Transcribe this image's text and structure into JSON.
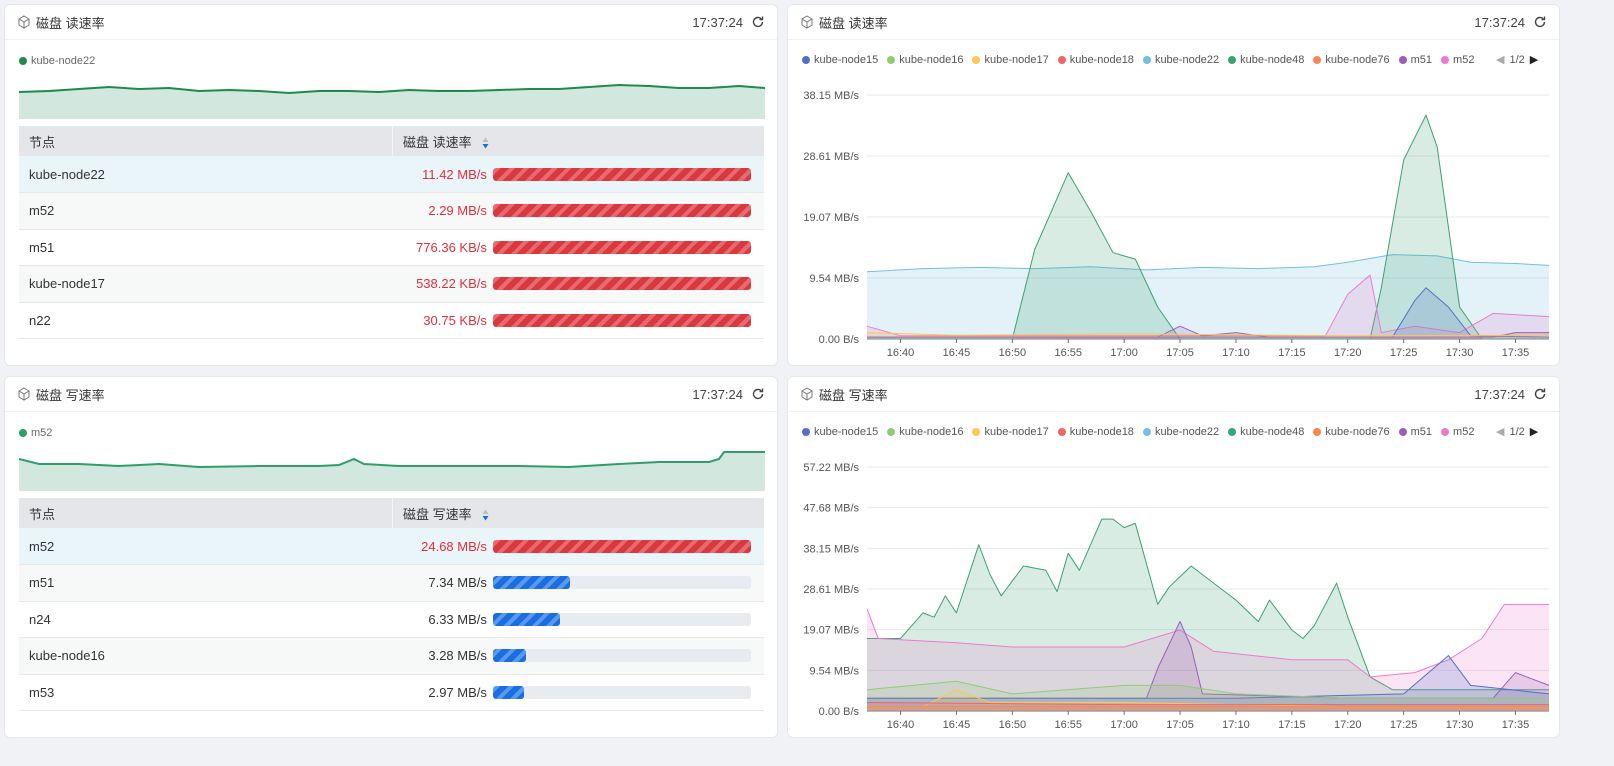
{
  "panels": [
    {
      "title": "磁盘 读速率",
      "time": "17:37:24",
      "legend": "kube-node22",
      "legend_color": "#1e8a4c",
      "table": {
        "headers": [
          "节点",
          "磁盘 读速率"
        ],
        "sort": "descending",
        "rows": [
          {
            "node": "kube-node22",
            "value": "11.42 MB/s",
            "fill": 1.0,
            "color": "red"
          },
          {
            "node": "m52",
            "value": "2.29 MB/s",
            "fill": 1.0,
            "color": "red"
          },
          {
            "node": "m51",
            "value": "776.36 KB/s",
            "fill": 1.0,
            "color": "red"
          },
          {
            "node": "kube-node17",
            "value": "538.22 KB/s",
            "fill": 1.0,
            "color": "red"
          },
          {
            "node": "n22",
            "value": "30.75 KB/s",
            "fill": 1.0,
            "color": "red"
          }
        ]
      }
    },
    {
      "title": "磁盘 写速率",
      "time": "17:37:24",
      "legend": "m52",
      "legend_color": "#2e9e6a",
      "table": {
        "headers": [
          "节点",
          "磁盘 写速率"
        ],
        "sort": "descending",
        "rows": [
          {
            "node": "m52",
            "value": "24.68 MB/s",
            "fill": 1.0,
            "color": "red"
          },
          {
            "node": "m51",
            "value": "7.34 MB/s",
            "fill": 0.3,
            "color": "blue"
          },
          {
            "node": "n24",
            "value": "6.33 MB/s",
            "fill": 0.26,
            "color": "blue"
          },
          {
            "node": "kube-node16",
            "value": "3.28 MB/s",
            "fill": 0.13,
            "color": "blue"
          },
          {
            "node": "m53",
            "value": "2.97 MB/s",
            "fill": 0.12,
            "color": "blue"
          }
        ]
      }
    },
    {
      "title": "磁盘 读速率",
      "time": "17:37:24"
    },
    {
      "title": "磁盘 写速率",
      "time": "17:37:24"
    }
  ],
  "legend_items": [
    {
      "name": "kube-node15",
      "color": "#5470c6"
    },
    {
      "name": "kube-node16",
      "color": "#91cc75"
    },
    {
      "name": "kube-node17",
      "color": "#fac858"
    },
    {
      "name": "kube-node18",
      "color": "#ee6666"
    },
    {
      "name": "kube-node22",
      "color": "#73c0de"
    },
    {
      "name": "kube-node48",
      "color": "#3ba272"
    },
    {
      "name": "kube-node76",
      "color": "#fc8452"
    },
    {
      "name": "m51",
      "color": "#9a60b4"
    },
    {
      "name": "m52",
      "color": "#ea7ccc"
    }
  ],
  "legend_page": "1/2",
  "chart_data": [
    {
      "type": "area",
      "title": "磁盘 读速率",
      "x_range": [
        "16:37",
        "17:38"
      ],
      "x_ticks": [
        "16:40",
        "16:45",
        "16:50",
        "16:55",
        "17:00",
        "17:05",
        "17:10",
        "17:15",
        "17:20",
        "17:25",
        "17:30",
        "17:35"
      ],
      "y_ticks": [
        "0.00 B/s",
        "9.54 MB/s",
        "19.07 MB/s",
        "28.61 MB/s",
        "38.15 MB/s"
      ],
      "ylim": [
        0,
        38.15
      ],
      "grid": true,
      "series": [
        {
          "name": "kube-node22",
          "values": [
            [
              "16:37",
              10.5
            ],
            [
              "16:42",
              11
            ],
            [
              "16:47",
              11.2
            ],
            [
              "16:52",
              11
            ],
            [
              "16:57",
              11.3
            ],
            [
              "17:02",
              10.8
            ],
            [
              "17:07",
              11.2
            ],
            [
              "17:12",
              11
            ],
            [
              "17:17",
              11.3
            ],
            [
              "17:20",
              12
            ],
            [
              "17:24",
              13.2
            ],
            [
              "17:28",
              13
            ],
            [
              "17:31",
              12
            ],
            [
              "17:35",
              11.8
            ],
            [
              "17:38",
              11.5
            ]
          ]
        },
        {
          "name": "kube-node48",
          "values": [
            [
              "16:37",
              0
            ],
            [
              "16:50",
              0
            ],
            [
              "16:52",
              14
            ],
            [
              "16:54",
              22
            ],
            [
              "16:55",
              26
            ],
            [
              "16:57",
              20
            ],
            [
              "16:59",
              13.5
            ],
            [
              "17:01",
              12.5
            ],
            [
              "17:03",
              5
            ],
            [
              "17:05",
              0
            ],
            [
              "17:22",
              0
            ],
            [
              "17:23",
              8
            ],
            [
              "17:25",
              28
            ],
            [
              "17:27",
              35
            ],
            [
              "17:28",
              30
            ],
            [
              "17:30",
              5
            ],
            [
              "17:32",
              0
            ],
            [
              "17:38",
              0
            ]
          ]
        },
        {
          "name": "m52",
          "values": [
            [
              "16:37",
              2
            ],
            [
              "16:40",
              0.5
            ],
            [
              "17:18",
              0.5
            ],
            [
              "17:20",
              7
            ],
            [
              "17:22",
              10
            ],
            [
              "17:23",
              1
            ],
            [
              "17:26",
              2
            ],
            [
              "17:30",
              1
            ],
            [
              "17:33",
              4
            ],
            [
              "17:38",
              3.5
            ]
          ]
        },
        {
          "name": "kube-node15",
          "values": [
            [
              "16:37",
              0.3
            ],
            [
              "17:24",
              0.3
            ],
            [
              "17:26",
              6
            ],
            [
              "17:27",
              8
            ],
            [
              "17:29",
              5
            ],
            [
              "17:31",
              0.5
            ],
            [
              "17:38",
              0.3
            ]
          ]
        },
        {
          "name": "m51",
          "values": [
            [
              "16:37",
              0.3
            ],
            [
              "17:03",
              0.3
            ],
            [
              "17:05",
              2
            ],
            [
              "17:07",
              0.5
            ],
            [
              "17:10",
              1
            ],
            [
              "17:13",
              0.3
            ],
            [
              "17:33",
              0.3
            ],
            [
              "17:35",
              1
            ],
            [
              "17:38",
              1
            ]
          ]
        },
        {
          "name": "kube-node17",
          "values": [
            [
              "16:37",
              1
            ],
            [
              "16:45",
              0.6
            ],
            [
              "17:00",
              0.8
            ],
            [
              "17:20",
              0.5
            ],
            [
              "17:38",
              0.6
            ]
          ]
        }
      ]
    },
    {
      "type": "area",
      "title": "磁盘 写速率",
      "x_range": [
        "16:37",
        "17:38"
      ],
      "x_ticks": [
        "16:40",
        "16:45",
        "16:50",
        "16:55",
        "17:00",
        "17:05",
        "17:10",
        "17:15",
        "17:20",
        "17:25",
        "17:30",
        "17:35"
      ],
      "y_ticks": [
        "0.00 B/s",
        "9.54 MB/s",
        "19.07 MB/s",
        "28.61 MB/s",
        "38.15 MB/s",
        "47.68 MB/s",
        "57.22 MB/s"
      ],
      "ylim": [
        0,
        57.22
      ],
      "grid": true,
      "series": [
        {
          "name": "kube-node48",
          "values": [
            [
              "16:37",
              17
            ],
            [
              "16:40",
              17
            ],
            [
              "16:42",
              23
            ],
            [
              "16:43",
              22
            ],
            [
              "16:44",
              27
            ],
            [
              "16:45",
              23
            ],
            [
              "16:47",
              39
            ],
            [
              "16:48",
              32
            ],
            [
              "16:49",
              27
            ],
            [
              "16:51",
              34
            ],
            [
              "16:53",
              33
            ],
            [
              "16:54",
              28
            ],
            [
              "16:55",
              37
            ],
            [
              "16:56",
              33
            ],
            [
              "16:58",
              45
            ],
            [
              "16:59",
              45
            ],
            [
              "17:00",
              43
            ],
            [
              "17:01",
              44
            ],
            [
              "17:03",
              25
            ],
            [
              "17:04",
              29
            ],
            [
              "17:06",
              34
            ],
            [
              "17:08",
              30
            ],
            [
              "17:10",
              26
            ],
            [
              "17:12",
              21
            ],
            [
              "17:13",
              26
            ],
            [
              "17:15",
              19
            ],
            [
              "17:16",
              17
            ],
            [
              "17:17",
              20
            ],
            [
              "17:19",
              30
            ],
            [
              "17:20",
              22
            ],
            [
              "17:22",
              8
            ],
            [
              "17:24",
              5
            ],
            [
              "17:38",
              5
            ]
          ]
        },
        {
          "name": "m52",
          "values": [
            [
              "16:37",
              24
            ],
            [
              "16:38",
              17
            ],
            [
              "16:45",
              16
            ],
            [
              "16:50",
              15
            ],
            [
              "17:00",
              15
            ],
            [
              "17:05",
              19
            ],
            [
              "17:08",
              14
            ],
            [
              "17:15",
              12
            ],
            [
              "17:20",
              12
            ],
            [
              "17:22",
              8
            ],
            [
              "17:26",
              9
            ],
            [
              "17:29",
              12
            ],
            [
              "17:32",
              17
            ],
            [
              "17:34",
              25
            ],
            [
              "17:38",
              25
            ]
          ]
        },
        {
          "name": "m51",
          "values": [
            [
              "16:37",
              3
            ],
            [
              "17:02",
              3
            ],
            [
              "17:03",
              10
            ],
            [
              "17:05",
              21
            ],
            [
              "17:06",
              15
            ],
            [
              "17:07",
              4
            ],
            [
              "17:20",
              3
            ],
            [
              "17:33",
              3
            ],
            [
              "17:35",
              9
            ],
            [
              "17:38",
              6
            ]
          ]
        },
        {
          "name": "kube-node15",
          "values": [
            [
              "16:37",
              3
            ],
            [
              "16:50",
              3
            ],
            [
              "17:10",
              3
            ],
            [
              "17:25",
              4
            ],
            [
              "17:29",
              13
            ],
            [
              "17:31",
              6
            ],
            [
              "17:38",
              4
            ]
          ]
        },
        {
          "name": "kube-node16",
          "values": [
            [
              "16:37",
              5
            ],
            [
              "16:45",
              7
            ],
            [
              "16:50",
              4
            ],
            [
              "17:00",
              6
            ],
            [
              "17:05",
              6
            ],
            [
              "17:10",
              4
            ],
            [
              "17:20",
              3
            ],
            [
              "17:38",
              3
            ]
          ]
        },
        {
          "name": "kube-node17",
          "values": [
            [
              "16:37",
              1
            ],
            [
              "16:42",
              1
            ],
            [
              "16:45",
              5
            ],
            [
              "16:48",
              2
            ],
            [
              "17:00",
              2
            ],
            [
              "17:20",
              1
            ],
            [
              "17:38",
              1
            ]
          ]
        },
        {
          "name": "kube-node18",
          "values": [
            [
              "16:37",
              2
            ],
            [
              "17:00",
              1.5
            ],
            [
              "17:38",
              1.5
            ]
          ]
        },
        {
          "name": "kube-node76",
          "values": [
            [
              "16:37",
              1
            ],
            [
              "17:38",
              1
            ]
          ]
        }
      ]
    }
  ]
}
